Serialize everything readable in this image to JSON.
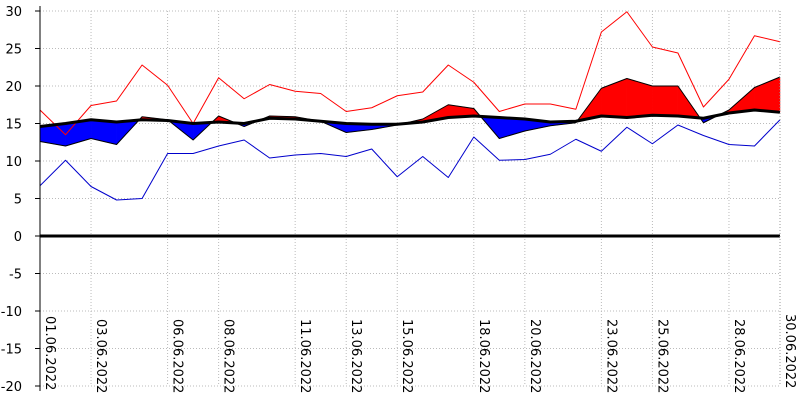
{
  "chart_data": {
    "type": "line",
    "x": [
      "01.06.2022",
      "02.06.2022",
      "03.06.2022",
      "04.06.2022",
      "05.06.2022",
      "06.06.2022",
      "07.06.2022",
      "08.06.2022",
      "09.06.2022",
      "10.06.2022",
      "11.06.2022",
      "12.06.2022",
      "13.06.2022",
      "14.06.2022",
      "15.06.2022",
      "16.06.2022",
      "17.06.2022",
      "18.06.2022",
      "19.06.2022",
      "20.06.2022",
      "21.06.2022",
      "22.06.2022",
      "23.06.2022",
      "24.06.2022",
      "25.06.2022",
      "26.06.2022",
      "27.06.2022",
      "28.06.2022",
      "29.06.2022",
      "30.06.2022"
    ],
    "x_tick_labels": [
      "01.06.2022",
      "03.06.2022",
      "06.06.2022",
      "08.06.2022",
      "11.06.2022",
      "13.06.2022",
      "15.06.2022",
      "18.06.2022",
      "20.06.2022",
      "23.06.2022",
      "25.06.2022",
      "28.06.2022",
      "30.06.2022"
    ],
    "y_tick_labels": [
      "30",
      "25",
      "20",
      "15",
      "10",
      "5",
      "0",
      "-5",
      "-10",
      "-15",
      "-20"
    ],
    "ylim": [
      -20,
      30
    ],
    "grid": true,
    "colors": {
      "max": "#ff0000",
      "min": "#0000cc",
      "mean": "#000000",
      "norm": "#000000",
      "warm_fill": "#ff0000",
      "cold_fill": "#0000ff",
      "grid": "#bbbbbb"
    },
    "series": [
      {
        "key": "max",
        "values": [
          16.8,
          13.5,
          17.4,
          18.0,
          22.8,
          20.1,
          15.0,
          21.1,
          18.3,
          20.2,
          19.3,
          19.0,
          16.6,
          17.1,
          18.7,
          19.2,
          22.8,
          20.5,
          16.6,
          17.6,
          17.6,
          16.9,
          27.2,
          29.9,
          25.2,
          24.4,
          17.2,
          20.9,
          26.7,
          25.9
        ]
      },
      {
        "key": "mean",
        "values": [
          12.6,
          12.0,
          13.0,
          12.2,
          15.9,
          15.5,
          12.8,
          16.0,
          14.6,
          16.0,
          15.9,
          15.3,
          13.8,
          14.2,
          14.8,
          15.6,
          17.5,
          17.0,
          13.0,
          14.0,
          14.7,
          15.1,
          19.7,
          21.0,
          20.0,
          20.0,
          15.1,
          16.8,
          19.8,
          21.2
        ]
      },
      {
        "key": "min",
        "values": [
          6.7,
          10.1,
          6.6,
          4.8,
          5.0,
          11.0,
          11.0,
          12.0,
          12.8,
          10.4,
          10.8,
          11.0,
          10.6,
          11.6,
          7.9,
          10.6,
          7.8,
          13.2,
          10.1,
          10.2,
          10.9,
          12.9,
          11.3,
          14.5,
          12.3,
          14.8,
          13.4,
          12.2,
          12.0,
          15.5
        ]
      },
      {
        "key": "norm",
        "values": [
          14.6,
          15.0,
          15.5,
          15.2,
          15.5,
          15.4,
          15.0,
          15.2,
          15.0,
          15.7,
          15.6,
          15.3,
          15.0,
          14.9,
          14.9,
          15.2,
          15.8,
          16.0,
          15.8,
          15.6,
          15.2,
          15.3,
          16.0,
          15.8,
          16.1,
          16.0,
          15.7,
          16.4,
          16.8,
          16.5
        ]
      }
    ]
  }
}
